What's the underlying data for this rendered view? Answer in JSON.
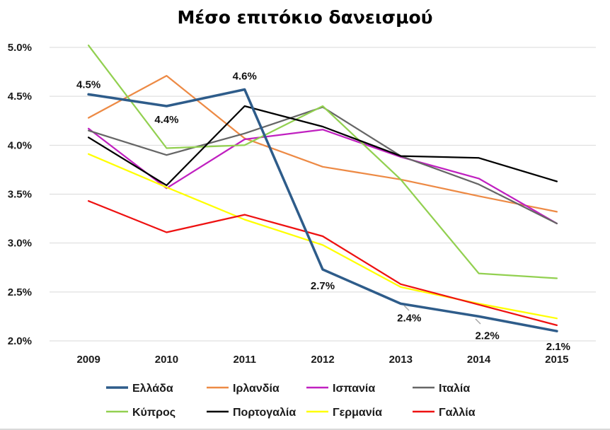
{
  "chart_data": {
    "type": "line",
    "title": "Μέσο επιτόκιο δανεισμού",
    "xlabel": "",
    "ylabel": "",
    "categories": [
      "2009",
      "2010",
      "2011",
      "2012",
      "2013",
      "2014",
      "2015"
    ],
    "ylim": [
      2.0,
      5.0
    ],
    "yticks": [
      2.0,
      2.5,
      3.0,
      3.5,
      4.0,
      4.5,
      5.0
    ],
    "ytick_labels": [
      "2.0%",
      "2.5%",
      "3.0%",
      "3.5%",
      "4.0%",
      "4.5%",
      "5.0%"
    ],
    "grid": "horizontal",
    "legend_position": "bottom",
    "series": [
      {
        "name": "Ελλάδα",
        "color": "#2e5c8a",
        "values": [
          4.52,
          4.4,
          4.57,
          2.73,
          2.38,
          2.25,
          2.1
        ]
      },
      {
        "name": "Ιρλανδία",
        "color": "#ed8a45",
        "values": [
          4.28,
          4.71,
          4.07,
          3.78,
          3.65,
          3.48,
          3.32
        ]
      },
      {
        "name": "Ισπανία",
        "color": "#c020c0",
        "values": [
          4.17,
          3.56,
          4.06,
          4.16,
          3.88,
          3.66,
          3.2
        ]
      },
      {
        "name": "Ιταλία",
        "color": "#666666",
        "values": [
          4.15,
          3.9,
          4.12,
          4.39,
          3.89,
          3.6,
          3.2
        ]
      },
      {
        "name": "Κύπρος",
        "color": "#92d050",
        "values": [
          5.02,
          3.97,
          4.0,
          4.4,
          3.65,
          2.69,
          2.64
        ]
      },
      {
        "name": "Πορτογαλία",
        "color": "#000000",
        "values": [
          4.08,
          3.59,
          4.4,
          4.19,
          3.89,
          3.87,
          3.63
        ]
      },
      {
        "name": "Γερμανία",
        "color": "#ffff00",
        "values": [
          3.91,
          3.57,
          3.24,
          2.98,
          2.55,
          2.38,
          2.23
        ]
      },
      {
        "name": "Γαλλία",
        "color": "#ee1111",
        "values": [
          3.43,
          3.11,
          3.29,
          3.07,
          2.58,
          2.37,
          2.16
        ]
      }
    ],
    "annotations": [
      {
        "series": "Ελλάδα",
        "category": "2009",
        "text": "4.5%"
      },
      {
        "series": "Ελλάδα",
        "category": "2010",
        "text": "4.4%"
      },
      {
        "series": "Ελλάδα",
        "category": "2011",
        "text": "4.6%"
      },
      {
        "series": "Ελλάδα",
        "category": "2012",
        "text": "2.7%"
      },
      {
        "series": "Ελλάδα",
        "category": "2013",
        "text": "2.4%"
      },
      {
        "series": "Ελλάδα",
        "category": "2014",
        "text": "2.2%"
      },
      {
        "series": "Ελλάδα",
        "category": "2015",
        "text": "2.1%"
      }
    ]
  }
}
